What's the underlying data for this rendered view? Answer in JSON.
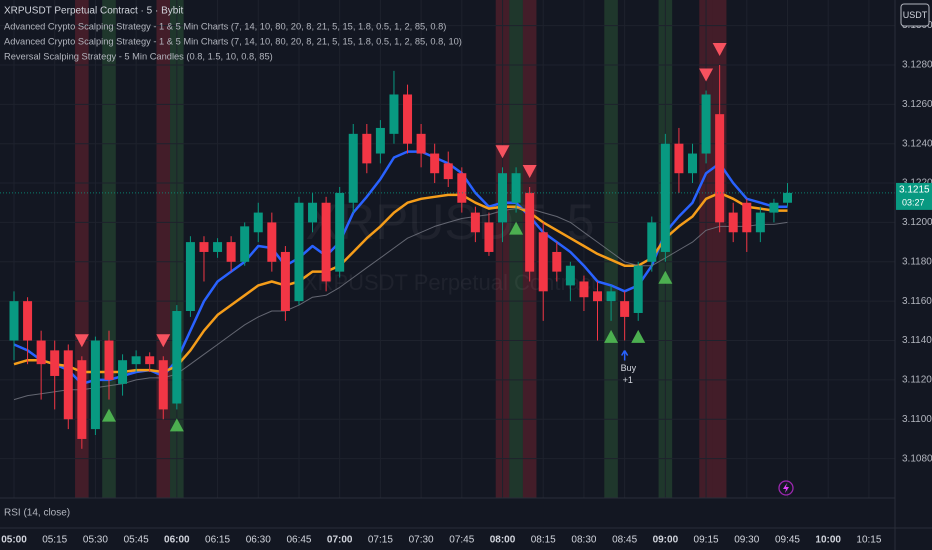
{
  "chart_data": {
    "type": "candlestick",
    "title": "XRPUSDT Perpetual Contract · 5 · Bybit",
    "indicators": [
      "Advanced Crypto Scalping Strategy - 1 & 5 Min Charts (7, 14, 10, 80, 20, 8, 21, 5, 15, 1.8, 0.5, 1, 2, 85, 0.8)",
      "Advanced Crypto Scalping Strategy - 1 & 5 Min Charts (7, 14, 10, 80, 20, 8, 21, 5, 15, 1.8, 0.5, 1, 2, 85, 0.8, 10)",
      "Reversal Scalping Strategy - 5 Min Candles (0.8, 1.5, 10, 0.8, 85)"
    ],
    "currency": "USDT",
    "watermark": [
      "XRPUSDT, 5",
      "XRPUSDT Perpetual Contract"
    ],
    "lower_pane_title": "RSI (14, close)",
    "categories": [
      "05:00",
      null,
      null,
      "05:15",
      null,
      null,
      "05:30",
      null,
      null,
      "05:45",
      null,
      null,
      "06:00",
      null,
      null,
      "06:15",
      null,
      null,
      "06:30",
      null,
      null,
      "06:45",
      null,
      null,
      "07:00",
      null,
      null,
      "07:15",
      null,
      null,
      "07:30",
      null,
      null,
      "07:45",
      null,
      null,
      "08:00",
      null,
      null,
      "08:15",
      null,
      null,
      "08:30",
      null,
      null,
      "08:45",
      null,
      null,
      "09:00",
      null,
      null,
      "09:15",
      null,
      null,
      "09:30",
      null,
      null,
      "09:45",
      null,
      null,
      "10:00",
      null,
      null,
      "10:15"
    ],
    "open": [
      3.114,
      3.116,
      3.114,
      3.1135,
      3.1135,
      3.113,
      3.1095,
      3.114,
      3.1118,
      3.1128,
      3.1132,
      3.113,
      3.1108,
      3.1155,
      3.119,
      3.1185,
      3.119,
      3.118,
      3.1195,
      3.12,
      3.1185,
      3.116,
      3.12,
      3.121,
      3.1175,
      3.121,
      3.1245,
      3.1235,
      3.1245,
      3.1265,
      3.1245,
      3.1235,
      3.123,
      3.1225,
      3.1205,
      3.12,
      3.12,
      3.121,
      3.1215,
      3.1195,
      3.1185,
      3.1168,
      3.117,
      3.1165,
      3.116,
      3.116,
      3.1154,
      3.118,
      3.1185,
      3.124,
      3.1225,
      3.1235,
      3.1255,
      3.1205,
      3.121,
      3.1195,
      3.1205,
      3.121,
      null,
      null,
      null,
      null,
      null,
      null
    ],
    "high": [
      3.1165,
      3.1162,
      3.1145,
      3.114,
      3.1138,
      3.1132,
      3.1142,
      3.1145,
      3.1133,
      3.1135,
      3.1134,
      3.1132,
      3.1158,
      3.1193,
      3.1193,
      3.1192,
      3.1193,
      3.12,
      3.121,
      3.1205,
      3.1188,
      3.1213,
      3.1215,
      3.1213,
      3.1218,
      3.125,
      3.125,
      3.1252,
      3.1277,
      3.127,
      3.125,
      3.124,
      3.1236,
      3.1228,
      3.1208,
      3.1205,
      3.1228,
      3.1228,
      3.1218,
      3.12,
      3.119,
      3.118,
      3.1173,
      3.117,
      3.1168,
      3.1165,
      3.118,
      3.1203,
      3.1245,
      3.1248,
      3.124,
      3.1267,
      3.128,
      3.121,
      3.1212,
      3.1208,
      3.1212,
      3.122,
      null,
      null,
      null,
      null,
      null,
      null
    ],
    "low": [
      3.113,
      3.1128,
      3.111,
      3.1105,
      3.1095,
      3.1085,
      3.1092,
      3.111,
      3.1112,
      3.1124,
      3.1124,
      3.11,
      3.1105,
      3.1152,
      3.117,
      3.1182,
      3.1175,
      3.1178,
      3.119,
      3.1175,
      3.115,
      3.1158,
      3.1195,
      3.1165,
      3.1172,
      3.1205,
      3.1225,
      3.123,
      3.124,
      3.1235,
      3.1228,
      3.122,
      3.1218,
      3.1205,
      3.119,
      3.1183,
      3.119,
      3.1205,
      3.117,
      3.115,
      3.117,
      3.116,
      3.1155,
      3.114,
      3.115,
      3.114,
      3.115,
      3.1175,
      3.118,
      3.1215,
      3.122,
      3.123,
      3.1195,
      3.119,
      3.1185,
      3.119,
      3.12,
      3.1208,
      null,
      null,
      null,
      null,
      null,
      null
    ],
    "close": [
      3.116,
      3.114,
      3.1128,
      3.1122,
      3.11,
      3.109,
      3.114,
      3.112,
      3.113,
      3.1132,
      3.1128,
      3.1105,
      3.1155,
      3.119,
      3.1185,
      3.119,
      3.118,
      3.1198,
      3.1205,
      3.118,
      3.1155,
      3.121,
      3.121,
      3.117,
      3.1215,
      3.1245,
      3.123,
      3.1248,
      3.1265,
      3.124,
      3.1235,
      3.1225,
      3.1222,
      3.121,
      3.1195,
      3.1185,
      3.1225,
      3.1225,
      3.1175,
      3.1165,
      3.1175,
      3.1178,
      3.1162,
      3.116,
      3.1165,
      3.1152,
      3.1178,
      3.12,
      3.124,
      3.1225,
      3.1235,
      3.1265,
      3.12,
      3.1195,
      3.1195,
      3.1205,
      3.121,
      3.1215,
      null,
      null,
      null,
      null,
      null,
      null
    ],
    "up_color": "#089981",
    "down_color": "#f23645",
    "series": [
      {
        "color": "#2962ff",
        "values": [
          3.1138,
          3.1135,
          3.113,
          3.1128,
          3.1125,
          3.1118,
          3.112,
          3.112,
          3.1122,
          3.1124,
          3.1125,
          3.1122,
          3.113,
          3.1145,
          3.116,
          3.117,
          3.1175,
          3.118,
          3.1188,
          3.1187,
          3.1178,
          3.1182,
          3.1188,
          3.1183,
          3.119,
          3.1205,
          3.1213,
          3.1222,
          3.1233,
          3.1236,
          3.1236,
          3.1233,
          3.123,
          3.1225,
          3.1215,
          3.1208,
          3.121,
          3.121,
          3.1203,
          3.1195,
          3.119,
          3.1185,
          3.1178,
          3.117,
          3.1168,
          3.1165,
          3.1168,
          3.1178,
          3.1195,
          3.1203,
          3.121,
          3.1225,
          3.123,
          3.122,
          3.1212,
          3.121,
          3.1208,
          3.1208,
          null,
          null,
          null,
          null,
          null,
          null
        ]
      },
      {
        "color": "#f59d1a",
        "values": [
          3.1128,
          3.113,
          3.113,
          3.1128,
          3.1127,
          3.1124,
          3.1124,
          3.1124,
          3.1124,
          3.1125,
          3.1125,
          3.1124,
          3.1127,
          3.1135,
          3.1145,
          3.1153,
          3.1158,
          3.1163,
          3.1168,
          3.117,
          3.1168,
          3.117,
          3.1175,
          3.1175,
          3.1178,
          3.1185,
          3.1192,
          3.1198,
          3.1205,
          3.121,
          3.1212,
          3.1213,
          3.1214,
          3.1214,
          3.121,
          3.1207,
          3.1208,
          3.1208,
          3.1205,
          3.12,
          3.1196,
          3.1192,
          3.1188,
          3.1184,
          3.1181,
          3.1178,
          3.1178,
          3.1182,
          3.1192,
          3.1198,
          3.1203,
          3.1212,
          3.1215,
          3.1212,
          3.1208,
          3.1207,
          3.1206,
          3.1206,
          null,
          null,
          null,
          null,
          null,
          null
        ]
      },
      {
        "color": "#787b86",
        "values": [
          3.111,
          3.1112,
          3.1113,
          3.1114,
          3.1115,
          3.1115,
          3.1116,
          3.1117,
          3.1118,
          3.112,
          3.1121,
          3.1121,
          3.1123,
          3.1128,
          3.1133,
          3.1138,
          3.1143,
          3.1148,
          3.1152,
          3.1155,
          3.1155,
          3.1158,
          3.1162,
          3.1163,
          3.1167,
          3.1172,
          3.1177,
          3.1182,
          3.1187,
          3.1192,
          3.1195,
          3.1198,
          3.12,
          3.1202,
          3.1203,
          3.1204,
          3.1206,
          3.1207,
          3.1207,
          3.1205,
          3.1203,
          3.12,
          3.1195,
          3.119,
          3.1185,
          3.118,
          3.1178,
          3.1178,
          3.1182,
          3.1186,
          3.119,
          3.1196,
          3.1198,
          3.1198,
          3.1198,
          3.1199,
          3.1199,
          3.12,
          null,
          null,
          null,
          null,
          null,
          null
        ]
      }
    ],
    "bands": [
      null,
      null,
      null,
      null,
      null,
      "#f23645",
      null,
      "#4caf50",
      null,
      null,
      null,
      "#f23645",
      "#4caf50",
      null,
      null,
      null,
      null,
      null,
      null,
      null,
      null,
      null,
      null,
      null,
      null,
      null,
      null,
      null,
      null,
      null,
      null,
      null,
      null,
      null,
      null,
      null,
      "#f23645",
      "#4caf50",
      "#f23645",
      null,
      null,
      null,
      null,
      null,
      "#4caf50",
      null,
      null,
      null,
      "#4caf50",
      null,
      null,
      "#f23645",
      "#f23645",
      null,
      null,
      null,
      null,
      null,
      null,
      null,
      null,
      null,
      null,
      null
    ],
    "signals": [
      null,
      null,
      null,
      null,
      null,
      "down",
      null,
      "up",
      null,
      null,
      null,
      "down",
      "up",
      null,
      null,
      null,
      null,
      null,
      null,
      null,
      null,
      null,
      null,
      null,
      null,
      null,
      null,
      null,
      null,
      null,
      null,
      null,
      null,
      null,
      null,
      null,
      "down",
      "up",
      "down",
      null,
      null,
      null,
      null,
      null,
      "up",
      null,
      "up",
      null,
      "up",
      null,
      null,
      "down",
      "down",
      null,
      null,
      null,
      null,
      null,
      null,
      null,
      null,
      null,
      null,
      null
    ],
    "signal_up_color": "#4caf50",
    "signal_down_color": "#f7525f",
    "annotations": [
      {
        "text": "Buy",
        "detail": "+1"
      }
    ],
    "ylim": [
      3.106,
      3.1313
    ],
    "yticks": [
      {
        "value": 3.108,
        "label": "3.1080"
      },
      {
        "value": 3.11,
        "label": "3.1100"
      },
      {
        "value": 3.112,
        "label": "3.1120"
      },
      {
        "value": 3.114,
        "label": "3.1140"
      },
      {
        "value": 3.116,
        "label": "3.1160"
      },
      {
        "value": 3.118,
        "label": "3.1180"
      },
      {
        "value": 3.12,
        "label": "3.1200"
      },
      {
        "value": 3.122,
        "label": "3.1220"
      },
      {
        "value": 3.124,
        "label": "3.1240"
      },
      {
        "value": 3.126,
        "label": "3.1260"
      },
      {
        "value": 3.128,
        "label": "3.1280"
      },
      {
        "value": 3.13,
        "label": "3.1300"
      }
    ],
    "grid": true,
    "last_price": 3.1215,
    "countdown": "03:27"
  }
}
